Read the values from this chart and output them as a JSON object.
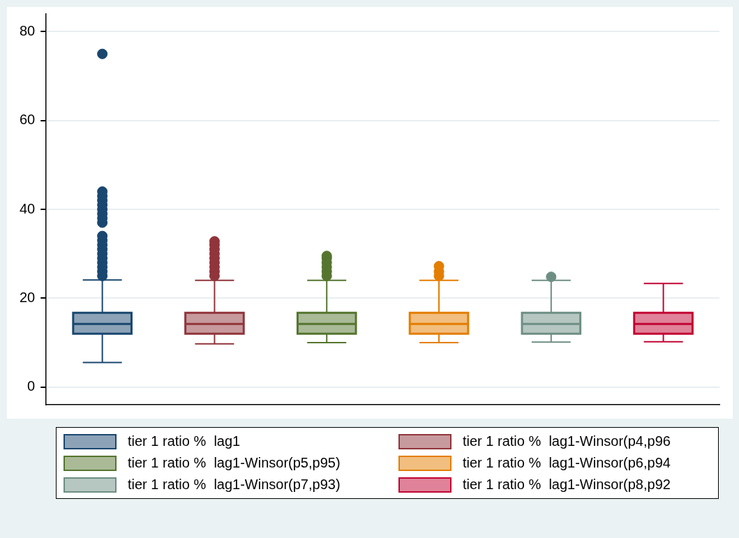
{
  "chart_data": {
    "type": "box",
    "categories": [
      null,
      null,
      null,
      null,
      null,
      null
    ],
    "ylim": [
      -4,
      84
    ],
    "yticks": [
      0,
      20,
      40,
      60,
      80
    ],
    "grid": "y",
    "legend": "bottom",
    "marker": "circle",
    "series": [
      {
        "name": "tier 1 ratio %  lag1",
        "color": "#1a476f",
        "boxes": [
          {
            "low": 5.5,
            "q1": 12.0,
            "median": 14.2,
            "q3": 16.7,
            "high": 24.1,
            "outliers": [
              25,
              26,
              27,
              28,
              29,
              30,
              31,
              32,
              33,
              34,
              37,
              38,
              39,
              40,
              41,
              42,
              43,
              44,
              75
            ]
          },
          null,
          null,
          null,
          null,
          null
        ]
      },
      {
        "name": "tier 1 ratio %  lag1-Winsor(p4,p96",
        "color": "#90353b",
        "boxes": [
          null,
          {
            "low": 9.7,
            "q1": 12.0,
            "median": 14.2,
            "q3": 16.7,
            "high": 24.0,
            "outliers": [
              25,
              26,
              27,
              28,
              29,
              30,
              31,
              32,
              32.8
            ]
          },
          null,
          null,
          null,
          null
        ]
      },
      {
        "name": "tier 1 ratio %  lag1-Winsor(p5,p95)",
        "color": "#55752f",
        "boxes": [
          null,
          null,
          {
            "low": 10.0,
            "q1": 12.0,
            "median": 14.2,
            "q3": 16.7,
            "high": 24.0,
            "outliers": [
              25,
              26,
              27,
              28,
              29,
              29.5
            ]
          },
          null,
          null,
          null
        ]
      },
      {
        "name": "tier 1 ratio %  lag1-Winsor(p6,p94",
        "color": "#e37e00",
        "boxes": [
          null,
          null,
          null,
          {
            "low": 10.0,
            "q1": 12.0,
            "median": 14.2,
            "q3": 16.7,
            "high": 24.0,
            "outliers": [
              25,
              26,
              27.2
            ]
          },
          null,
          null
        ]
      },
      {
        "name": "tier 1 ratio %  lag1-Winsor(p7,p93)",
        "color": "#6e8e84",
        "boxes": [
          null,
          null,
          null,
          null,
          {
            "low": 10.1,
            "q1": 12.0,
            "median": 14.2,
            "q3": 16.7,
            "high": 24.0,
            "outliers": [
              24.8
            ]
          },
          null
        ]
      },
      {
        "name": "tier 1 ratio %  lag1-Winsor(p8,p92",
        "color": "#c10534",
        "boxes": [
          null,
          null,
          null,
          null,
          null,
          {
            "low": 10.2,
            "q1": 12.0,
            "median": 14.2,
            "q3": 16.7,
            "high": 23.3
          }
        ]
      }
    ]
  }
}
